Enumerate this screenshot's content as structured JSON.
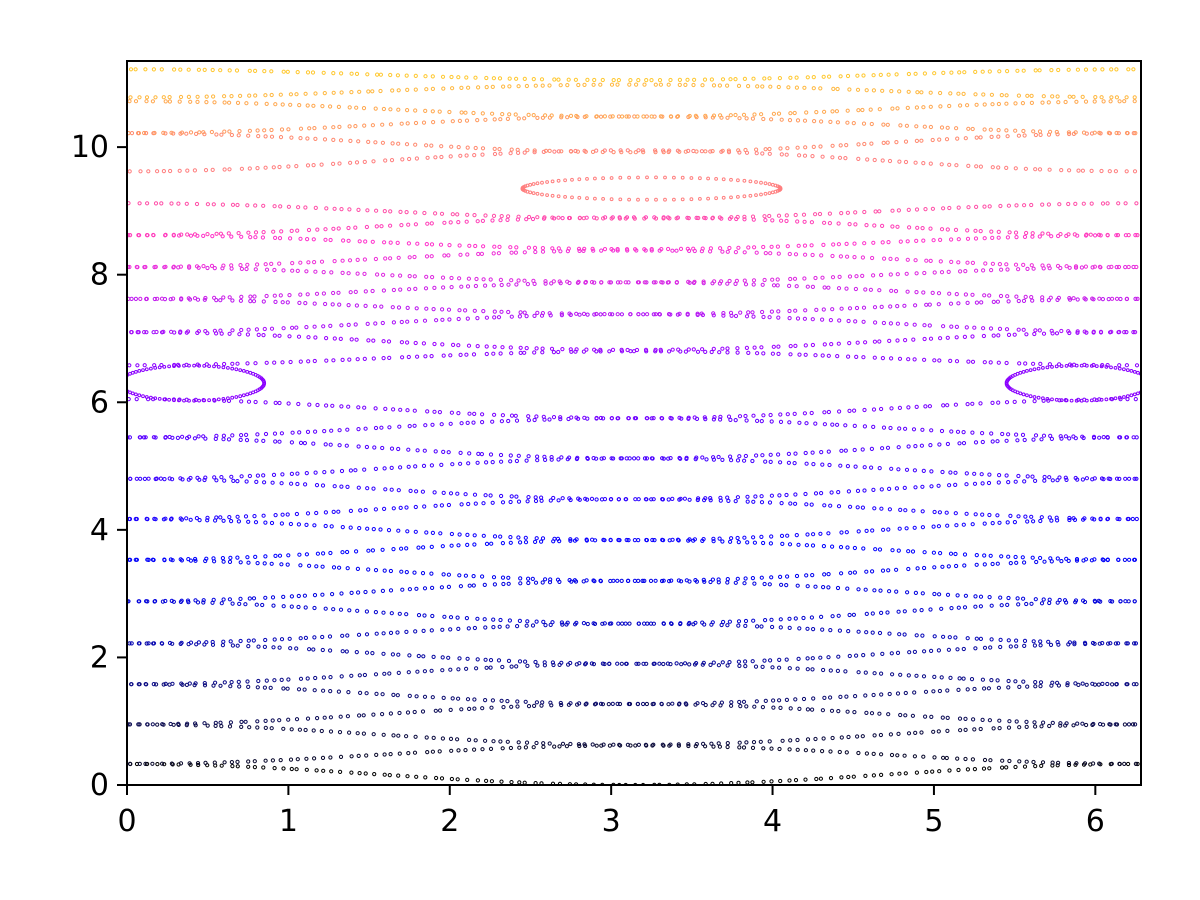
{
  "chart_data": {
    "type": "scatter",
    "title": "",
    "xlabel": "",
    "ylabel": "",
    "xlim": [
      0,
      6.283
    ],
    "ylim": [
      0,
      11.35
    ],
    "grid": false,
    "legend": "none",
    "x_ticks": [
      {
        "value": 0,
        "label": "0"
      },
      {
        "value": 1,
        "label": "1"
      },
      {
        "value": 2,
        "label": "2"
      },
      {
        "value": 3,
        "label": "3"
      },
      {
        "value": 4,
        "label": "4"
      },
      {
        "value": 5,
        "label": "5"
      },
      {
        "value": 6,
        "label": "6"
      }
    ],
    "y_ticks": [
      {
        "value": 0,
        "label": "0"
      },
      {
        "value": 2,
        "label": "2"
      },
      {
        "value": 4,
        "label": "4"
      },
      {
        "value": 6,
        "label": "6"
      },
      {
        "value": 8,
        "label": "8"
      },
      {
        "value": 10,
        "label": "10"
      }
    ],
    "colormap": [
      "#000000",
      "#0000ff",
      "#8a00ff",
      "#ff33cc",
      "#ff7f7f",
      "#ffb000",
      "#ffd000"
    ],
    "series": [
      {
        "color": "#000000",
        "values": [
          0.0,
          0.33
        ]
      },
      {
        "color": "#07072a",
        "values": [
          0.33,
          0.62
        ]
      },
      {
        "color": "#0a0a40",
        "values": [
          0.63,
          0.95
        ]
      },
      {
        "color": "#0a0a55",
        "values": [
          0.95,
          1.27
        ]
      },
      {
        "color": "#0a0a70",
        "values": [
          1.27,
          1.58
        ]
      },
      {
        "color": "#0a0a88",
        "values": [
          1.58,
          1.9
        ]
      },
      {
        "color": "#0808a0",
        "values": [
          1.9,
          2.22
        ]
      },
      {
        "color": "#0606b8",
        "values": [
          2.22,
          2.53
        ]
      },
      {
        "color": "#0404d0",
        "values": [
          2.53,
          2.88
        ]
      },
      {
        "color": "#0202e0",
        "values": [
          2.88,
          3.2
        ]
      },
      {
        "color": "#0000f0",
        "values": [
          3.2,
          3.53
        ]
      },
      {
        "color": "#0000ff",
        "values": [
          3.53,
          3.84
        ]
      },
      {
        "color": "#1000ff",
        "values": [
          3.84,
          4.17
        ]
      },
      {
        "color": "#2000ff",
        "values": [
          4.17,
          4.48
        ]
      },
      {
        "color": "#3000ff",
        "values": [
          4.48,
          4.8
        ]
      },
      {
        "color": "#4000ff",
        "values": [
          4.8,
          5.12
        ]
      },
      {
        "color": "#5000ff",
        "values": [
          5.12,
          5.45
        ]
      },
      {
        "color": "#6000ff",
        "values": [
          5.45,
          5.75
        ]
      },
      {
        "color": "#7800ff",
        "values": [
          5.75,
          6.05
        ]
      },
      {
        "color": "#8a00ff",
        "values": [
          6.58,
          6.8
        ]
      },
      {
        "color": "#9a00ff",
        "values": [
          6.82,
          7.1
        ]
      },
      {
        "color": "#aa10f8",
        "values": [
          7.1,
          7.38
        ]
      },
      {
        "color": "#bb18f0",
        "values": [
          7.38,
          7.62
        ]
      },
      {
        "color": "#cc20e8",
        "values": [
          7.62,
          7.88
        ]
      },
      {
        "color": "#dd28e0",
        "values": [
          7.88,
          8.12
        ]
      },
      {
        "color": "#ee30d8",
        "values": [
          8.12,
          8.38
        ]
      },
      {
        "color": "#ff33cc",
        "values": [
          8.4,
          8.62
        ]
      },
      {
        "color": "#ff40b8",
        "values": [
          8.62,
          8.9
        ]
      },
      {
        "color": "#ff50a8",
        "values": [
          8.88,
          9.12
        ]
      },
      {
        "color": "#ff7f7f",
        "values": [
          9.62,
          9.95
        ]
      },
      {
        "color": "#ff8a70",
        "values": [
          9.92,
          10.22
        ]
      },
      {
        "color": "#ff9a60",
        "values": [
          10.22,
          10.48
        ]
      },
      {
        "color": "#ffa850",
        "values": [
          10.48,
          10.72
        ]
      },
      {
        "color": "#ffb840",
        "values": [
          10.78,
          10.98
        ]
      },
      {
        "color": "#ffc830",
        "values": [
          11.05,
          11.22
        ]
      }
    ],
    "islands": [
      {
        "color": "#8a00ff",
        "center": [
          0.4,
          6.3
        ],
        "width": 0.9,
        "height": 0.55
      },
      {
        "color": "#8a00ff",
        "center": [
          5.9,
          6.3
        ],
        "width": 0.9,
        "height": 0.55
      },
      {
        "color": "#ff7f7f",
        "center": [
          3.25,
          9.35
        ],
        "width": 1.6,
        "height": 0.35
      }
    ]
  }
}
